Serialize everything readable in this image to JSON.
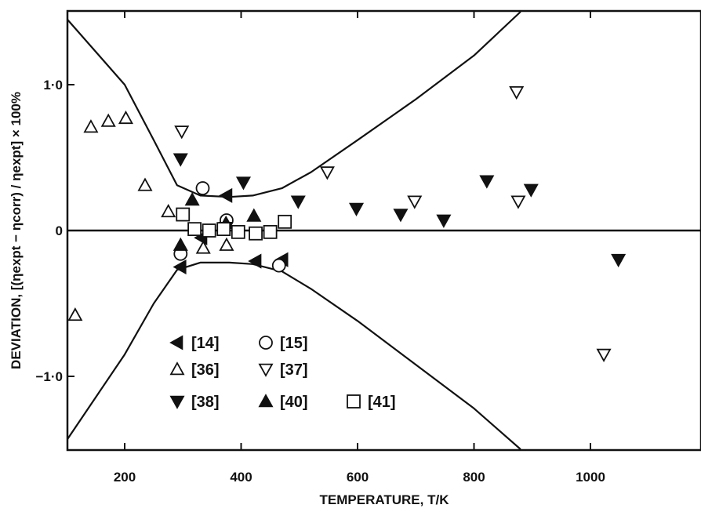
{
  "chart_data": {
    "type": "scatter",
    "xlabel": "TEMPERATURE,   T/K",
    "ylabel": "DEVIATION,  [(ηexpt − ηcorr) / ηexpt] × 100%",
    "xlim": [
      90,
      1180
    ],
    "ylim": [
      -1.5,
      1.5
    ],
    "x_ticks": [
      200,
      400,
      600,
      800,
      1000
    ],
    "y_ticks": [
      -1.0,
      0,
      1.0
    ],
    "x_tick_labels": [
      "200",
      "400",
      "600",
      "800",
      "1000"
    ],
    "y_tick_labels": [
      "−1·0",
      "0",
      "1·0"
    ],
    "grid": false,
    "legend_placement": "lower-left",
    "series": [
      {
        "name": "[14]",
        "marker": "triangle-left-filled",
        "x": [
          296,
          332,
          375,
          425,
          471
        ],
        "y": [
          -0.25,
          -0.05,
          0.24,
          -0.21,
          -0.2
        ]
      },
      {
        "name": "[15]",
        "marker": "circle-open",
        "x": [
          296,
          334,
          375,
          465
        ],
        "y": [
          -0.16,
          0.29,
          0.07,
          -0.24
        ]
      },
      {
        "name": "[36]",
        "marker": "triangle-up-open",
        "x": [
          115,
          142,
          172,
          202,
          235,
          275,
          335,
          375
        ],
        "y": [
          -0.58,
          0.71,
          0.75,
          0.77,
          0.31,
          0.13,
          -0.12,
          -0.1
        ]
      },
      {
        "name": "[37]",
        "marker": "triangle-down-open",
        "x": [
          298,
          548,
          698,
          873,
          876,
          1023
        ],
        "y": [
          0.68,
          0.4,
          0.2,
          0.95,
          0.2,
          -0.85
        ]
      },
      {
        "name": "[38]",
        "marker": "triangle-down-filled",
        "x": [
          296,
          374,
          404,
          498,
          598,
          674,
          748,
          822,
          898,
          1048
        ],
        "y": [
          0.49,
          0.02,
          0.33,
          0.2,
          0.15,
          0.11,
          0.07,
          0.34,
          0.28,
          -0.2
        ]
      },
      {
        "name": "[40]",
        "marker": "triangle-up-filled",
        "x": [
          296,
          316,
          374,
          422
        ],
        "y": [
          -0.1,
          0.21,
          0.05,
          0.1
        ]
      },
      {
        "name": "[41]",
        "marker": "square-open",
        "x": [
          300,
          320,
          345,
          370,
          395,
          425,
          450,
          475
        ],
        "y": [
          0.11,
          0.01,
          0.0,
          0.01,
          -0.01,
          -0.02,
          -0.01,
          0.06
        ]
      }
    ],
    "envelope": {
      "upper": {
        "x": [
          90,
          200,
          250,
          290,
          330,
          380,
          420,
          470,
          520,
          600,
          700,
          800,
          880
        ],
        "y": [
          1.5,
          1.0,
          0.62,
          0.31,
          0.24,
          0.23,
          0.24,
          0.29,
          0.4,
          0.62,
          0.9,
          1.2,
          1.5
        ]
      },
      "lower": {
        "x": [
          90,
          200,
          250,
          290,
          330,
          380,
          420,
          470,
          520,
          600,
          700,
          800,
          880
        ],
        "y": [
          -1.5,
          -0.85,
          -0.5,
          -0.27,
          -0.22,
          -0.22,
          -0.23,
          -0.28,
          -0.4,
          -0.62,
          -0.92,
          -1.22,
          -1.5
        ]
      }
    },
    "legend_rows": [
      [
        {
          "series": 0,
          "label": "[14]"
        },
        {
          "series": 1,
          "label": "[15]"
        }
      ],
      [
        {
          "series": 2,
          "label": "[36]"
        },
        {
          "series": 3,
          "label": "[37]"
        }
      ],
      [
        {
          "series": 4,
          "label": "[38]"
        },
        {
          "series": 5,
          "label": "[40]"
        },
        {
          "series": 6,
          "label": "[41]"
        }
      ]
    ]
  }
}
